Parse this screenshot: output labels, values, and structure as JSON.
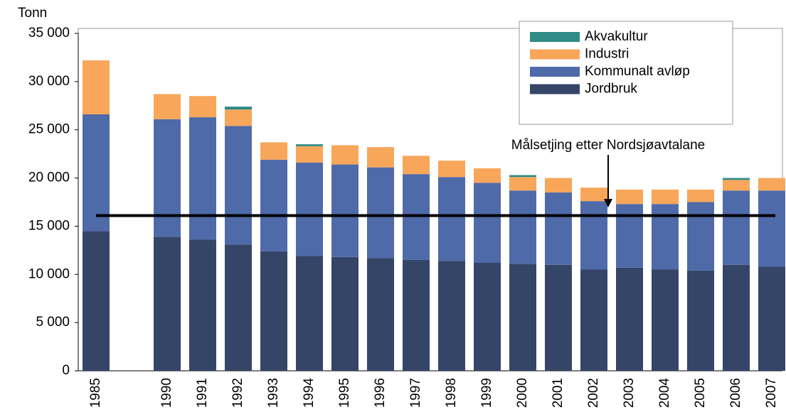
{
  "chart_data": {
    "type": "stacked_bar",
    "y_label": "Tonn",
    "categories": [
      "1985",
      null,
      "1990",
      "1991",
      "1992",
      "1993",
      "1994",
      "1995",
      "1996",
      "1997",
      "1998",
      "1999",
      "2000",
      "2001",
      "2002",
      "2003",
      "2004",
      "2005",
      "2006",
      "2007"
    ],
    "series": [
      {
        "name": "Jordbruk",
        "color": "#354568",
        "values": [
          14500,
          null,
          13900,
          13600,
          13100,
          12400,
          11900,
          11800,
          11700,
          11500,
          11400,
          11200,
          11100,
          11000,
          10500,
          10700,
          10500,
          10400,
          11000,
          10800
        ]
      },
      {
        "name": "Kommunalt avløp",
        "color": "#4f6aa9",
        "values": [
          12100,
          null,
          12200,
          12700,
          12300,
          9500,
          9700,
          9600,
          9400,
          8900,
          8700,
          8300,
          7600,
          7500,
          7100,
          6600,
          6800,
          7100,
          7700,
          7900
        ]
      },
      {
        "name": "Industri",
        "color": "#f8a65a",
        "values": [
          5600,
          null,
          2600,
          2200,
          1700,
          1800,
          1700,
          2000,
          2100,
          1900,
          1700,
          1500,
          1400,
          1500,
          1400,
          1500,
          1500,
          1300,
          1100,
          1300
        ]
      },
      {
        "name": "Akvakultur",
        "color": "#2e8b85",
        "values": [
          0,
          null,
          0,
          0,
          300,
          0,
          200,
          0,
          0,
          0,
          0,
          0,
          200,
          0,
          0,
          0,
          0,
          0,
          200,
          0
        ]
      }
    ],
    "ylim": [
      0,
      35000
    ],
    "yticks": [
      0,
      {
        "value": 5000,
        "label": "5 000"
      },
      {
        "value": 10000,
        "label": "10 000"
      },
      {
        "value": 15000,
        "label": "15 000"
      },
      {
        "value": 20000,
        "label": "20 000"
      },
      {
        "value": 25000,
        "label": "25 000"
      },
      {
        "value": 30000,
        "label": "30 000"
      },
      {
        "value": 35000,
        "label": "35 000"
      }
    ],
    "target": {
      "label": "Målsetjing etter Nordsjøavtalane",
      "value": 16100
    },
    "legend": "top-right"
  }
}
